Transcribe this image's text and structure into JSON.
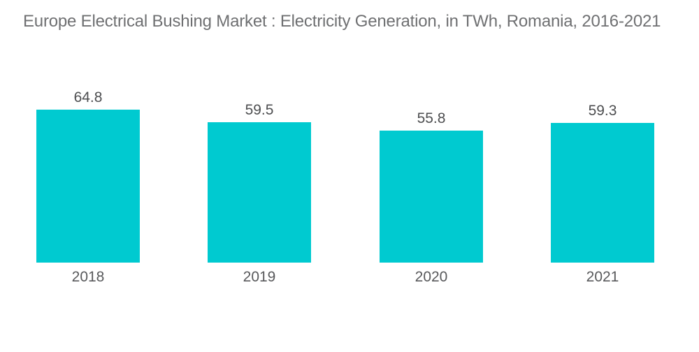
{
  "title": "Europe Electrical Bushing Market : Electricity Generation, in TWh, Romania, 2016-2021",
  "colors": {
    "background": "#FFFFFF",
    "bar": "#00CAD0",
    "title_text": "#6F7072",
    "value_text": "#4D4E50",
    "axis_text": "#58595B"
  },
  "chart_data": {
    "type": "bar",
    "title": "Europe Electrical Bushing Market : Electricity Generation, in TWh, Romania, 2016-2021",
    "categories": [
      "2018",
      "2019",
      "2020",
      "2021"
    ],
    "values": [
      64.8,
      59.5,
      55.8,
      59.3
    ],
    "xlabel": "",
    "ylabel": "",
    "unit": "TWh",
    "ylim": [
      0,
      64.8
    ],
    "grid": false,
    "legend": false,
    "axes_visible": false,
    "data_labels": "above bars",
    "category_labels": "below bars"
  }
}
